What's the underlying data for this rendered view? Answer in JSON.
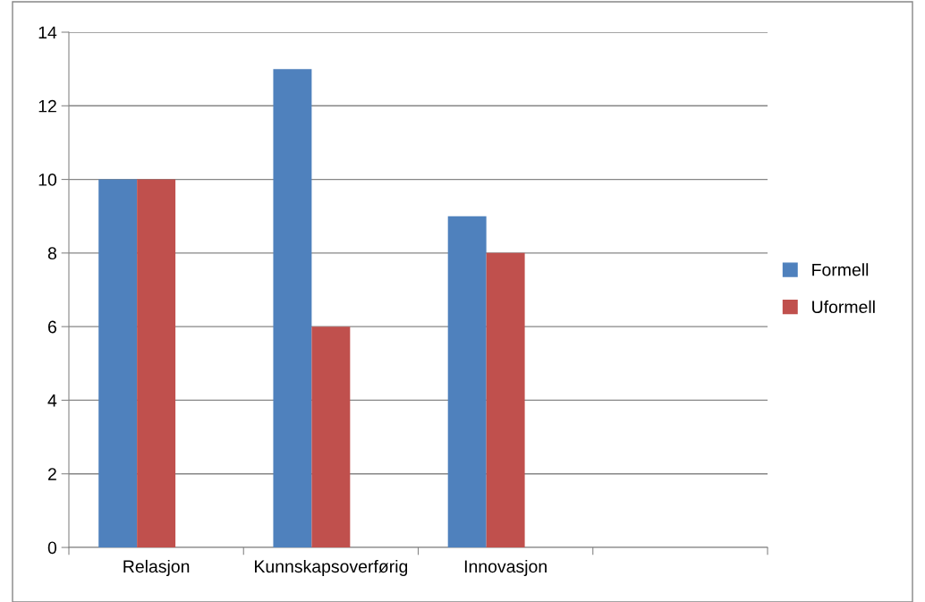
{
  "chart_data": {
    "type": "bar",
    "categories": [
      "Relasjon",
      "Kunnskapsoverførig",
      "Innovasjon",
      null
    ],
    "series": [
      {
        "name": "Formell",
        "color": "#4f81bd",
        "values": [
          10,
          13,
          9,
          null
        ]
      },
      {
        "name": "Uformell",
        "color": "#c0504d",
        "values": [
          10,
          6,
          8,
          null
        ]
      }
    ],
    "ylim": [
      0,
      14
    ],
    "yticks": [
      0,
      2,
      4,
      6,
      8,
      10,
      12,
      14
    ],
    "grid": "y",
    "legend": "right"
  }
}
